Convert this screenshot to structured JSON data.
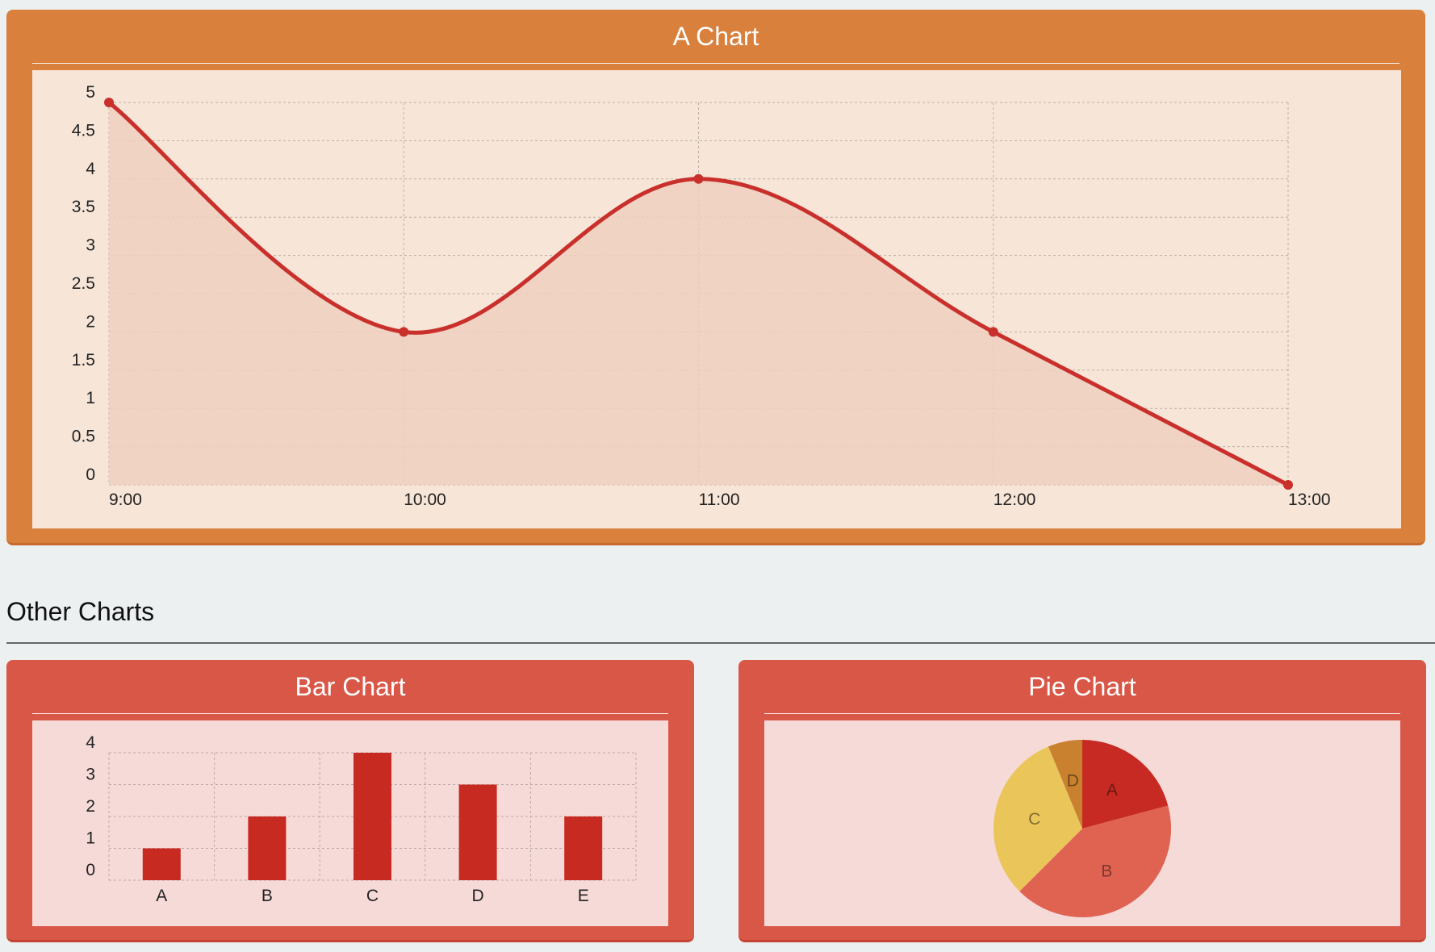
{
  "colors": {
    "main_panel": "#d9803c",
    "sub_panel": "#d95747",
    "line": "#c9302c",
    "area_fill": "#f0cfc1",
    "bar": "#c72a20",
    "pie_A": "#c62a22",
    "pie_B": "#e06352",
    "pie_C": "#eac559",
    "pie_D": "#c9812f"
  },
  "main": {
    "title": "A Chart"
  },
  "section": {
    "title": "Other Charts"
  },
  "bar_panel": {
    "title": "Bar Chart"
  },
  "pie_panel": {
    "title": "Pie Chart"
  },
  "chart_data": [
    {
      "type": "line",
      "title": "A Chart",
      "fill": true,
      "smooth": true,
      "x": [
        "9:00",
        "10:00",
        "11:00",
        "12:00",
        "13:00"
      ],
      "values": [
        5,
        2,
        4,
        2,
        0
      ],
      "ylim": [
        0,
        5
      ],
      "yticks": [
        "0",
        "0.5",
        "1",
        "1.5",
        "2",
        "2.5",
        "3",
        "3.5",
        "4",
        "4.5",
        "5"
      ],
      "grid": true,
      "xlabel": "",
      "ylabel": ""
    },
    {
      "type": "bar",
      "title": "Bar Chart",
      "categories": [
        "A",
        "B",
        "C",
        "D",
        "E"
      ],
      "values": [
        1,
        2,
        4,
        3,
        2
      ],
      "ylim": [
        0,
        4
      ],
      "yticks": [
        "0",
        "1",
        "2",
        "3",
        "4"
      ],
      "grid": true,
      "xlabel": "",
      "ylabel": ""
    },
    {
      "type": "pie",
      "title": "Pie Chart",
      "labels": [
        "A",
        "B",
        "C",
        "D"
      ],
      "values": [
        2,
        4,
        3,
        0.6
      ]
    }
  ]
}
